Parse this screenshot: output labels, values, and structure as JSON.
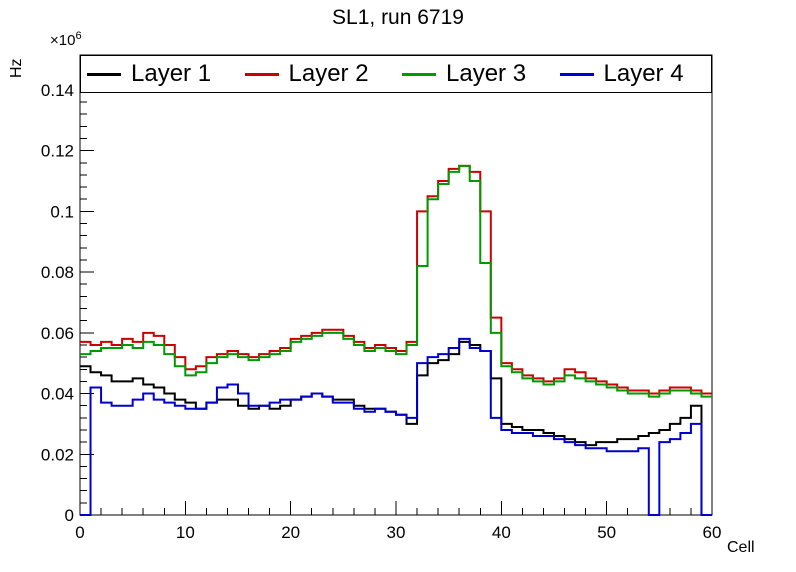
{
  "chart_data": {
    "type": "step-histogram",
    "title": "SL1, run 6719",
    "xlabel": "Cell",
    "ylabel": "Hz",
    "y_scale_base": "×10",
    "y_scale_exp": "6",
    "xlim": [
      0,
      60
    ],
    "ylim": [
      0,
      0.1515
    ],
    "bin_width": 1,
    "x_major_ticks": [
      0,
      10,
      20,
      30,
      40,
      50,
      60
    ],
    "x_tick_labels": [
      "0",
      "10",
      "20",
      "30",
      "40",
      "50",
      "60"
    ],
    "x_minor_step": 2,
    "y_major_ticks": [
      0,
      0.02,
      0.04,
      0.06,
      0.08,
      0.1,
      0.12,
      0.14
    ],
    "y_tick_labels": [
      "0",
      "0.02",
      "0.04",
      "0.06",
      "0.08",
      "0.1",
      "0.12",
      "0.14"
    ],
    "y_minor_step": 0.004,
    "grid": false,
    "legend_position": "top",
    "series": [
      {
        "name": "Layer 1",
        "color": "#000000",
        "values": [
          0.049,
          0.047,
          0.046,
          0.044,
          0.044,
          0.045,
          0.043,
          0.042,
          0.04,
          0.038,
          0.037,
          0.035,
          0.037,
          0.038,
          0.038,
          0.036,
          0.035,
          0.036,
          0.035,
          0.036,
          0.038,
          0.039,
          0.04,
          0.039,
          0.038,
          0.038,
          0.036,
          0.035,
          0.035,
          0.034,
          0.033,
          0.03,
          0.046,
          0.05,
          0.051,
          0.053,
          0.057,
          0.056,
          0.054,
          0.045,
          0.03,
          0.029,
          0.028,
          0.028,
          0.027,
          0.026,
          0.025,
          0.024,
          0.023,
          0.024,
          0.024,
          0.025,
          0.025,
          0.026,
          0.027,
          0.028,
          0.03,
          0.032,
          0.036,
          0.0
        ]
      },
      {
        "name": "Layer 2",
        "color": "#cc0000",
        "values": [
          0.057,
          0.056,
          0.057,
          0.056,
          0.058,
          0.057,
          0.06,
          0.059,
          0.056,
          0.052,
          0.048,
          0.049,
          0.052,
          0.053,
          0.054,
          0.053,
          0.052,
          0.053,
          0.054,
          0.055,
          0.058,
          0.059,
          0.06,
          0.061,
          0.061,
          0.059,
          0.057,
          0.055,
          0.056,
          0.055,
          0.054,
          0.057,
          0.1,
          0.105,
          0.11,
          0.114,
          0.115,
          0.113,
          0.1,
          0.065,
          0.05,
          0.048,
          0.046,
          0.045,
          0.044,
          0.045,
          0.048,
          0.047,
          0.045,
          0.044,
          0.043,
          0.042,
          0.041,
          0.041,
          0.04,
          0.041,
          0.042,
          0.042,
          0.041,
          0.04
        ]
      },
      {
        "name": "Layer 3",
        "color": "#009900",
        "values": [
          0.053,
          0.054,
          0.055,
          0.055,
          0.056,
          0.055,
          0.057,
          0.056,
          0.053,
          0.049,
          0.046,
          0.047,
          0.05,
          0.052,
          0.053,
          0.052,
          0.051,
          0.052,
          0.053,
          0.054,
          0.057,
          0.058,
          0.059,
          0.06,
          0.06,
          0.058,
          0.056,
          0.054,
          0.055,
          0.054,
          0.053,
          0.056,
          0.082,
          0.104,
          0.109,
          0.113,
          0.115,
          0.11,
          0.083,
          0.06,
          0.049,
          0.047,
          0.045,
          0.044,
          0.043,
          0.044,
          0.046,
          0.045,
          0.044,
          0.043,
          0.042,
          0.041,
          0.04,
          0.04,
          0.039,
          0.04,
          0.041,
          0.041,
          0.04,
          0.039
        ]
      },
      {
        "name": "Layer 4",
        "color": "#0000cc",
        "values": [
          0.0,
          0.042,
          0.037,
          0.036,
          0.036,
          0.038,
          0.04,
          0.038,
          0.037,
          0.036,
          0.035,
          0.035,
          0.037,
          0.042,
          0.043,
          0.04,
          0.036,
          0.036,
          0.037,
          0.038,
          0.038,
          0.039,
          0.04,
          0.039,
          0.037,
          0.037,
          0.035,
          0.034,
          0.035,
          0.034,
          0.033,
          0.032,
          0.05,
          0.052,
          0.053,
          0.055,
          0.058,
          0.055,
          0.054,
          0.032,
          0.028,
          0.027,
          0.027,
          0.026,
          0.026,
          0.025,
          0.024,
          0.023,
          0.022,
          0.022,
          0.021,
          0.021,
          0.021,
          0.022,
          0.0,
          0.024,
          0.025,
          0.027,
          0.03,
          0.0
        ]
      }
    ]
  }
}
